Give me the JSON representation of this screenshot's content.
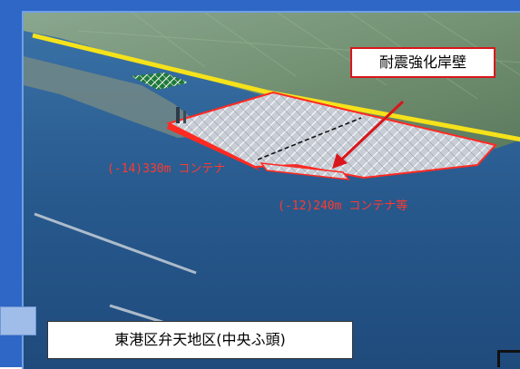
{
  "callout": {
    "label": "耐震強化岸壁"
  },
  "berths": [
    {
      "label": "(-14)330m コンテナ"
    },
    {
      "label": "(-12)240m コンテナ等"
    }
  ],
  "caption": {
    "label": "東港区弁天地区(中央ふ頭)"
  },
  "colors": {
    "frame": "#2f67c6",
    "sea": "#2a5a93",
    "land": "#6b8a6a",
    "boundary_line": "#f5e21a",
    "quay_outline": "#ff2a22",
    "callout_border": "#d9161b"
  }
}
